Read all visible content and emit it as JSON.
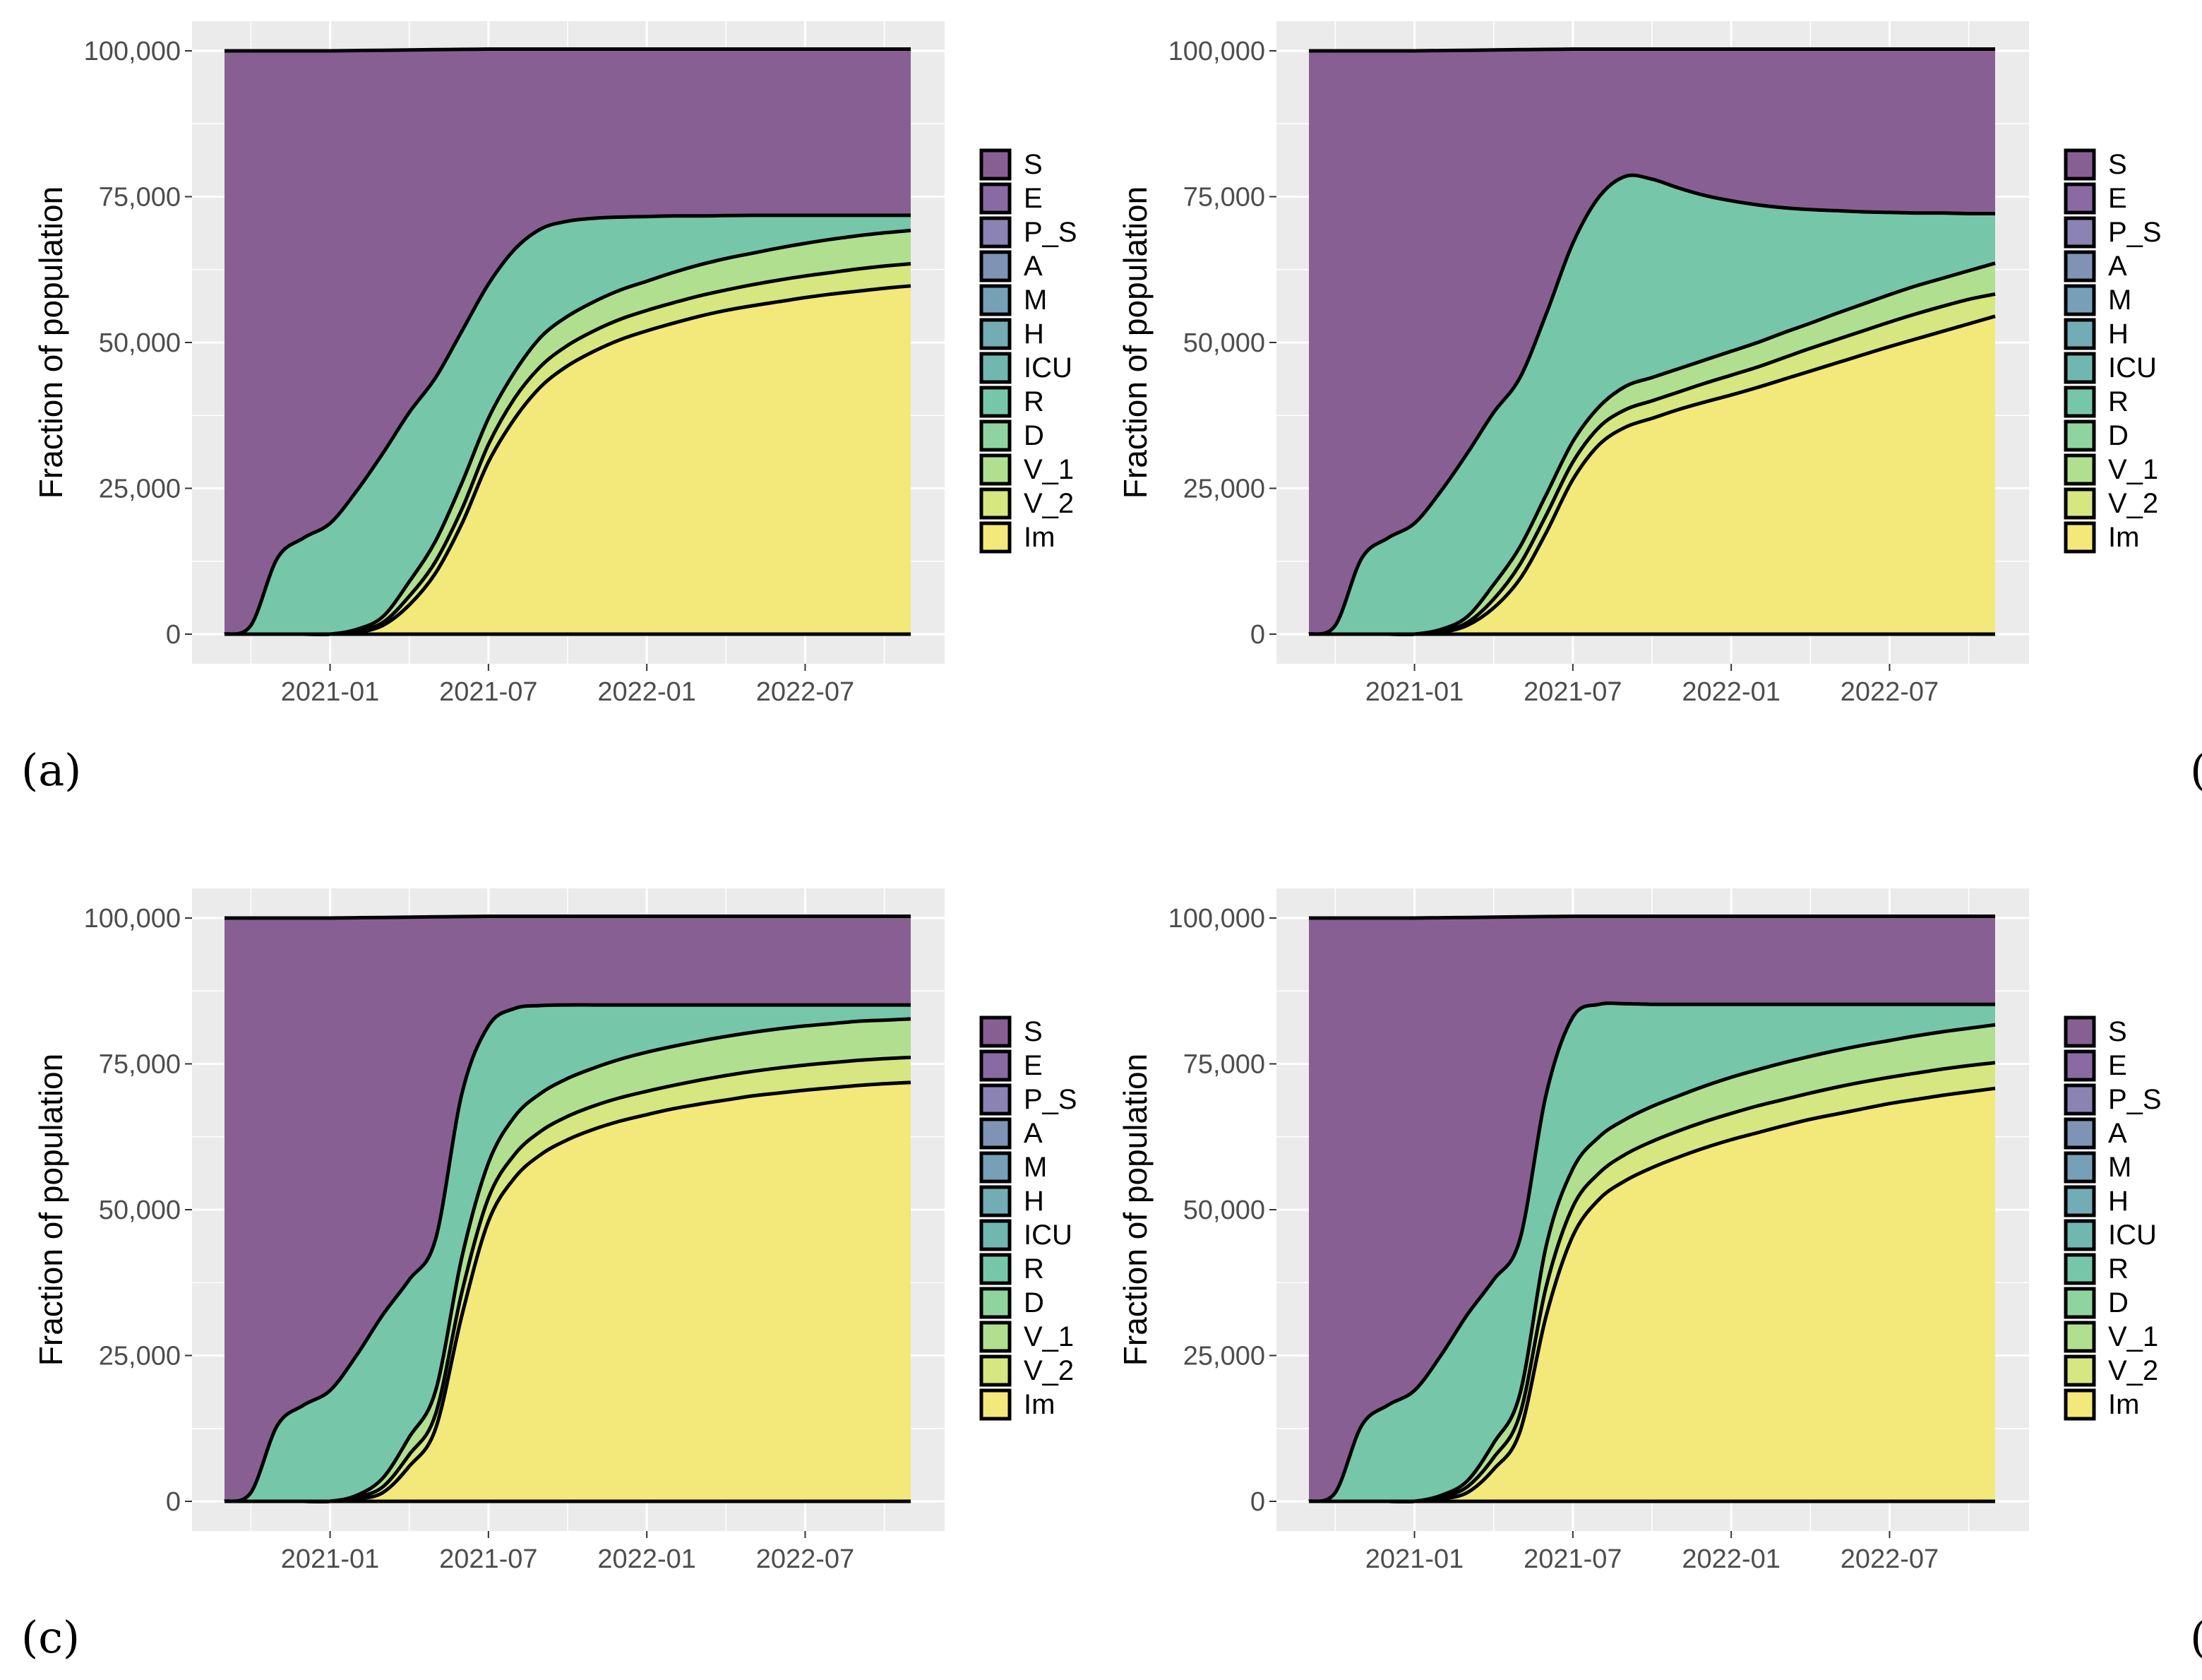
{
  "figure": {
    "x_tick_labels": [
      "2021-01",
      "2021-07",
      "2022-01",
      "2022-07"
    ],
    "y_tick_labels": [
      "0",
      "25,000",
      "50,000",
      "75,000",
      "100,000"
    ],
    "legend_labels": [
      "S",
      "E",
      "P_S",
      "A",
      "M",
      "H",
      "ICU",
      "R",
      "D",
      "V_1",
      "V_2",
      "Im"
    ],
    "colors": {
      "S": "#885f93",
      "E": "#8a6aa4",
      "P_S": "#8a83b4",
      "A": "#7f93b4",
      "M": "#76a0b7",
      "H": "#72acb4",
      "ICU": "#70b7b0",
      "R": "#76c7a9",
      "D": "#8fd49f",
      "V_1": "#b0e08f",
      "V_2": "#d6e681",
      "Im": "#f3e87a",
      "panel_bg": "#ebebeb",
      "grid": "#ffffff"
    }
  },
  "chart_data": [
    {
      "panel": "(a)",
      "type": "area",
      "stacked": true,
      "xlabel": "",
      "ylabel": "Fraction of population",
      "ylim": [
        0,
        100000
      ],
      "xlim": [
        "2020-09",
        "2022-11"
      ],
      "x": [
        "2020-09",
        "2020-10",
        "2020-11",
        "2020-12",
        "2021-01",
        "2021-02",
        "2021-03",
        "2021-04",
        "2021-05",
        "2021-06",
        "2021-07",
        "2021-08",
        "2021-09",
        "2021-10",
        "2021-11",
        "2021-12",
        "2022-01",
        "2022-02",
        "2022-03",
        "2022-04",
        "2022-05",
        "2022-06",
        "2022-07",
        "2022-08",
        "2022-09",
        "2022-10",
        "2022-11"
      ],
      "cumulative": {
        "R_top": [
          0,
          1500,
          13000,
          16500,
          19000,
          24500,
          31000,
          38000,
          44000,
          52000,
          60000,
          66000,
          69500,
          70800,
          71300,
          71500,
          71600,
          71700,
          71700,
          71750,
          71800,
          71800,
          71800,
          71800,
          71800,
          71800,
          71800
        ],
        "V_1_top": [
          0,
          0,
          0,
          0,
          0,
          800,
          3000,
          9000,
          16000,
          26000,
          37000,
          45000,
          51000,
          54500,
          57000,
          59000,
          60500,
          62000,
          63300,
          64400,
          65300,
          66200,
          67000,
          67700,
          68300,
          68800,
          69200
        ],
        "V_2_top": [
          0,
          0,
          0,
          0,
          0,
          500,
          2000,
          6500,
          12500,
          21500,
          32500,
          40500,
          46000,
          49500,
          52000,
          54000,
          55500,
          56800,
          58000,
          59000,
          59900,
          60700,
          61400,
          62000,
          62600,
          63100,
          63500
        ],
        "Im_top": [
          0,
          0,
          0,
          0,
          0,
          300,
          1500,
          5000,
          10500,
          19000,
          29500,
          37000,
          42500,
          46000,
          48500,
          50500,
          52000,
          53300,
          54500,
          55500,
          56300,
          57000,
          57700,
          58300,
          58800,
          59300,
          59700
        ],
        "S_top": [
          100000,
          100000,
          100000,
          100000,
          100000,
          100050,
          100100,
          100150,
          100200,
          100250,
          100300,
          100300,
          100300,
          100300,
          100300,
          100300,
          100300,
          100300,
          100300,
          100300,
          100300,
          100300,
          100300,
          100300,
          100300,
          100300,
          100300
        ]
      }
    },
    {
      "panel": "(b)",
      "type": "area",
      "stacked": true,
      "xlabel": "",
      "ylabel": "Fraction of population",
      "ylim": [
        0,
        100000
      ],
      "xlim": [
        "2020-09",
        "2022-11"
      ],
      "x": [
        "2020-09",
        "2020-10",
        "2020-11",
        "2020-12",
        "2021-01",
        "2021-02",
        "2021-03",
        "2021-04",
        "2021-05",
        "2021-06",
        "2021-07",
        "2021-08",
        "2021-09",
        "2021-10",
        "2021-11",
        "2021-12",
        "2022-01",
        "2022-02",
        "2022-03",
        "2022-04",
        "2022-05",
        "2022-06",
        "2022-07",
        "2022-08",
        "2022-09",
        "2022-10",
        "2022-11"
      ],
      "cumulative": {
        "R_top": [
          0,
          1500,
          13000,
          16500,
          19000,
          24500,
          31000,
          38000,
          44000,
          55000,
          67000,
          75000,
          78500,
          78000,
          76500,
          75200,
          74300,
          73600,
          73100,
          72800,
          72600,
          72400,
          72300,
          72200,
          72200,
          72100,
          72100
        ],
        "V_1_top": [
          0,
          0,
          0,
          0,
          0,
          800,
          3000,
          8500,
          15000,
          24000,
          33000,
          39000,
          42500,
          44000,
          45500,
          47000,
          48500,
          50000,
          51700,
          53300,
          55000,
          56600,
          58200,
          59700,
          61000,
          62300,
          63600
        ],
        "V_2_top": [
          0,
          0,
          0,
          0,
          0,
          500,
          2000,
          6000,
          12000,
          20500,
          29500,
          35500,
          38500,
          40000,
          41500,
          43000,
          44400,
          45800,
          47400,
          49000,
          50500,
          52000,
          53500,
          54900,
          56200,
          57400,
          58300
        ],
        "Im_top": [
          0,
          0,
          0,
          0,
          0,
          300,
          1500,
          4500,
          9500,
          17500,
          26500,
          32500,
          35500,
          37000,
          38500,
          39800,
          41000,
          42300,
          43700,
          45100,
          46500,
          47900,
          49300,
          50600,
          51900,
          53200,
          54500
        ],
        "S_top": [
          100000,
          100000,
          100000,
          100000,
          100000,
          100050,
          100100,
          100150,
          100200,
          100250,
          100300,
          100300,
          100300,
          100300,
          100300,
          100300,
          100300,
          100300,
          100300,
          100300,
          100300,
          100300,
          100300,
          100300,
          100300,
          100300,
          100300
        ]
      }
    },
    {
      "panel": "(c)",
      "type": "area",
      "stacked": true,
      "xlabel": "",
      "ylabel": "Fraction of population",
      "ylim": [
        0,
        100000
      ],
      "xlim": [
        "2020-09",
        "2022-11"
      ],
      "x": [
        "2020-09",
        "2020-10",
        "2020-11",
        "2020-12",
        "2021-01",
        "2021-02",
        "2021-03",
        "2021-04",
        "2021-05",
        "2021-06",
        "2021-07",
        "2021-08",
        "2021-09",
        "2021-10",
        "2021-11",
        "2021-12",
        "2022-01",
        "2022-02",
        "2022-03",
        "2022-04",
        "2022-05",
        "2022-06",
        "2022-07",
        "2022-08",
        "2022-09",
        "2022-10",
        "2022-11"
      ],
      "cumulative": {
        "R_top": [
          0,
          1500,
          13000,
          16500,
          19000,
          25000,
          32000,
          38000,
          45000,
          70000,
          81500,
          84500,
          85000,
          85100,
          85100,
          85100,
          85100,
          85100,
          85100,
          85100,
          85100,
          85100,
          85100,
          85100,
          85100,
          85100,
          85100
        ],
        "V_1_top": [
          0,
          0,
          0,
          0,
          0,
          1000,
          4000,
          11000,
          19000,
          42000,
          58000,
          66000,
          70000,
          72500,
          74300,
          75800,
          77000,
          78000,
          78900,
          79700,
          80400,
          81000,
          81500,
          81900,
          82300,
          82500,
          82700
        ],
        "V_2_top": [
          0,
          0,
          0,
          0,
          0,
          700,
          2500,
          8000,
          15000,
          36000,
          52000,
          59500,
          63500,
          66000,
          67800,
          69200,
          70300,
          71300,
          72200,
          73000,
          73700,
          74300,
          74800,
          75200,
          75600,
          75900,
          76100
        ],
        "Im_top": [
          0,
          0,
          0,
          0,
          0,
          400,
          1500,
          6000,
          12500,
          32000,
          48000,
          55500,
          59500,
          62000,
          63800,
          65200,
          66300,
          67300,
          68100,
          68800,
          69500,
          70000,
          70500,
          70900,
          71300,
          71600,
          71800
        ],
        "S_top": [
          100000,
          100000,
          100000,
          100000,
          100000,
          100050,
          100100,
          100150,
          100200,
          100250,
          100300,
          100300,
          100300,
          100300,
          100300,
          100300,
          100300,
          100300,
          100300,
          100300,
          100300,
          100300,
          100300,
          100300,
          100300,
          100300,
          100300
        ]
      }
    },
    {
      "panel": "(d)",
      "type": "area",
      "stacked": true,
      "xlabel": "",
      "ylabel": "Fraction of population",
      "ylim": [
        0,
        100000
      ],
      "xlim": [
        "2020-09",
        "2022-11"
      ],
      "x": [
        "2020-09",
        "2020-10",
        "2020-11",
        "2020-12",
        "2021-01",
        "2021-02",
        "2021-03",
        "2021-04",
        "2021-05",
        "2021-06",
        "2021-07",
        "2021-08",
        "2021-09",
        "2021-10",
        "2021-11",
        "2021-12",
        "2022-01",
        "2022-02",
        "2022-03",
        "2022-04",
        "2022-05",
        "2022-06",
        "2022-07",
        "2022-08",
        "2022-09",
        "2022-10",
        "2022-11"
      ],
      "cumulative": {
        "R_top": [
          0,
          1500,
          13000,
          16500,
          19000,
          25000,
          32000,
          38000,
          45000,
          70000,
          83000,
          85200,
          85300,
          85200,
          85200,
          85200,
          85200,
          85200,
          85200,
          85200,
          85200,
          85200,
          85200,
          85200,
          85200,
          85200,
          85200
        ],
        "V_1_top": [
          0,
          0,
          0,
          0,
          0,
          1000,
          3500,
          10000,
          18500,
          44000,
          57000,
          62500,
          65500,
          67700,
          69500,
          71200,
          72700,
          74000,
          75200,
          76300,
          77300,
          78200,
          79000,
          79800,
          80500,
          81100,
          81700
        ],
        "V_2_top": [
          0,
          0,
          0,
          0,
          0,
          700,
          2500,
          7500,
          15000,
          37000,
          50500,
          56300,
          59500,
          61700,
          63500,
          65100,
          66500,
          67800,
          68900,
          70000,
          71000,
          71900,
          72700,
          73400,
          74100,
          74700,
          75200
        ],
        "Im_top": [
          0,
          0,
          0,
          0,
          0,
          400,
          1500,
          5500,
          12000,
          32000,
          45500,
          51800,
          55000,
          57200,
          59000,
          60600,
          62000,
          63200,
          64400,
          65500,
          66400,
          67300,
          68200,
          68900,
          69600,
          70200,
          70800
        ],
        "S_top": [
          100000,
          100000,
          100000,
          100000,
          100000,
          100050,
          100100,
          100150,
          100200,
          100250,
          100300,
          100300,
          100300,
          100300,
          100300,
          100300,
          100300,
          100300,
          100300,
          100300,
          100300,
          100300,
          100300,
          100300,
          100300,
          100300,
          100300
        ]
      }
    }
  ]
}
